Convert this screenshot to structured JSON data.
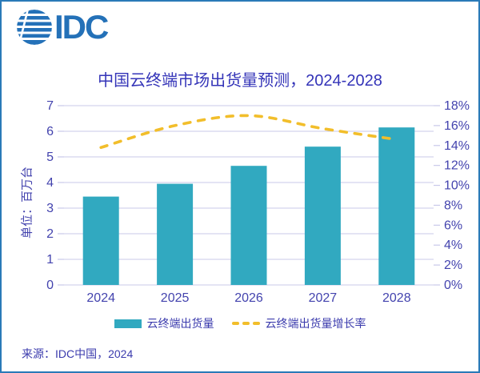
{
  "logo": {
    "text": "IDC"
  },
  "source": {
    "text": "来源：IDC中国，2024"
  },
  "chart_data": {
    "type": "bar",
    "title": "中国云终端市场出货量预测，2024-2028",
    "categories": [
      "2024",
      "2025",
      "2026",
      "2027",
      "2028"
    ],
    "series": [
      {
        "name": "云终端出货量",
        "type": "bar",
        "axis": "left",
        "values": [
          3.45,
          3.95,
          4.65,
          5.4,
          6.15
        ]
      },
      {
        "name": "云终端出货量增长率",
        "type": "line",
        "axis": "right",
        "style": "dashed",
        "values": [
          13.8,
          16.0,
          17.0,
          15.7,
          14.6
        ]
      }
    ],
    "left_axis": {
      "label": "单位：百万台",
      "min": 0,
      "max": 7,
      "step": 1
    },
    "right_axis": {
      "min": 0,
      "max": 18,
      "step": 2,
      "suffix": "%"
    },
    "grid": true,
    "legend_position": "bottom"
  },
  "colors": {
    "background": "#FFFFFF",
    "frame_border": "#2A7AB8",
    "logo_blue": "#2471B8",
    "title_text": "#3434B8",
    "axis_text": "#4343AE",
    "label_text": "#3B3BAD",
    "grid": "#C9C9EA",
    "bar": "#31A9C0",
    "line": "#F2BE2B"
  }
}
